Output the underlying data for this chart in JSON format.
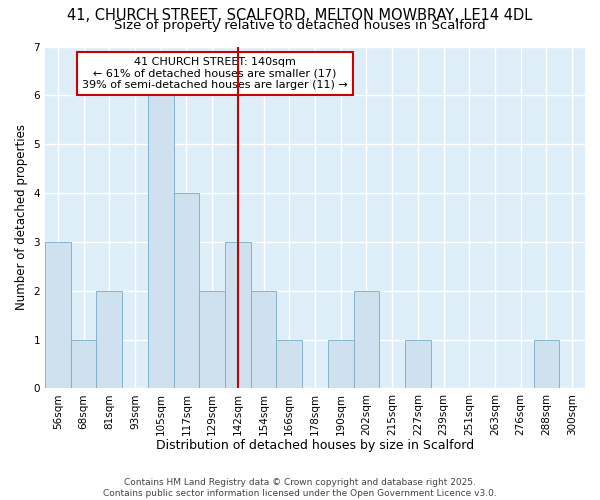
{
  "title": "41, CHURCH STREET, SCALFORD, MELTON MOWBRAY, LE14 4DL",
  "subtitle": "Size of property relative to detached houses in Scalford",
  "xlabel": "Distribution of detached houses by size in Scalford",
  "ylabel": "Number of detached properties",
  "categories": [
    "56sqm",
    "68sqm",
    "81sqm",
    "93sqm",
    "105sqm",
    "117sqm",
    "129sqm",
    "142sqm",
    "154sqm",
    "166sqm",
    "178sqm",
    "190sqm",
    "202sqm",
    "215sqm",
    "227sqm",
    "239sqm",
    "251sqm",
    "263sqm",
    "276sqm",
    "288sqm",
    "300sqm"
  ],
  "values": [
    3,
    1,
    2,
    0,
    6,
    4,
    2,
    3,
    2,
    1,
    0,
    1,
    2,
    0,
    1,
    0,
    0,
    0,
    0,
    1,
    0
  ],
  "bar_color": "#cfe0ef",
  "bar_edge_color": "#7aaac8",
  "vline_x": 7,
  "vline_color": "#cc0000",
  "annotation_text": "41 CHURCH STREET: 140sqm\n← 61% of detached houses are smaller (17)\n39% of semi-detached houses are larger (11) →",
  "annotation_box_facecolor": "#ffffff",
  "annotation_box_edgecolor": "#cc0000",
  "ylim": [
    0,
    7
  ],
  "yticks": [
    0,
    1,
    2,
    3,
    4,
    5,
    6,
    7
  ],
  "figure_bg_color": "#ffffff",
  "plot_bg_color": "#ddeef8",
  "footer": "Contains HM Land Registry data © Crown copyright and database right 2025.\nContains public sector information licensed under the Open Government Licence v3.0.",
  "grid_color": "#ffffff",
  "title_fontsize": 10.5,
  "subtitle_fontsize": 9.5,
  "xlabel_fontsize": 9,
  "ylabel_fontsize": 8.5,
  "tick_fontsize": 7.5,
  "annotation_fontsize": 8,
  "footer_fontsize": 6.5
}
